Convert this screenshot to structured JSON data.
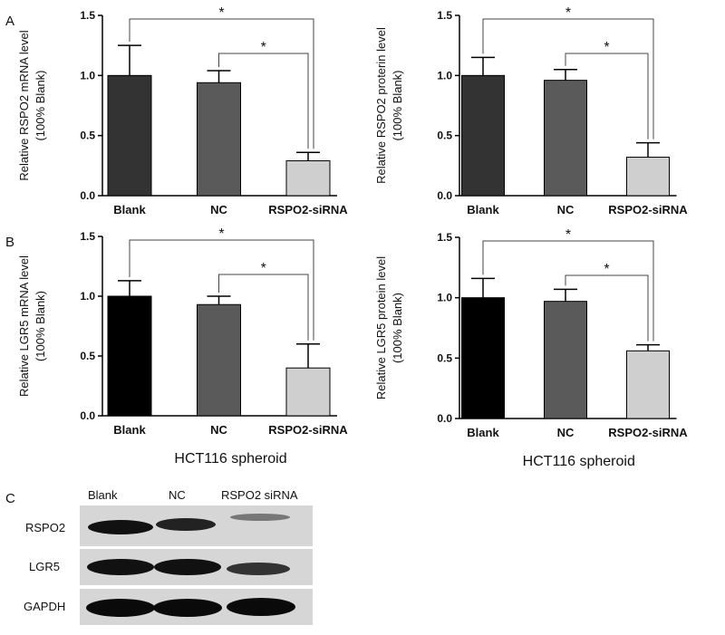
{
  "chart_data": [
    {
      "type": "bar",
      "ylabel": [
        "Relative RSPO2 mRNA level",
        "(100% Blank)"
      ],
      "categories": [
        "Blank",
        "NC",
        "RSPO2-siRNA"
      ],
      "values": [
        1.0,
        0.94,
        0.29
      ],
      "errors": [
        0.25,
        0.1,
        0.07
      ],
      "colors": [
        "#333333",
        "#5a5a5a",
        "#cfcfcf"
      ],
      "annotations": [
        "*",
        "*"
      ],
      "ylim": [
        0,
        1.5
      ],
      "yticks": [
        {
          "value": 0,
          "label": "0.0"
        },
        {
          "value": 0.5,
          "label": "0.5"
        },
        {
          "value": 1,
          "label": "1.0"
        },
        {
          "value": 1.5,
          "label": "1.5"
        }
      ]
    },
    {
      "type": "bar",
      "ylabel": [
        "Relative RSPO2 proterin level",
        "(100% Blank)"
      ],
      "categories": [
        "Blank",
        "NC",
        "RSPO2-siRNA"
      ],
      "values": [
        1.0,
        0.96,
        0.32
      ],
      "errors": [
        0.15,
        0.09,
        0.12
      ],
      "colors": [
        "#333333",
        "#5a5a5a",
        "#cfcfcf"
      ],
      "annotations": [
        "*",
        "*"
      ],
      "ylim": [
        0,
        1.5
      ],
      "yticks": [
        {
          "value": 0,
          "label": "0.0"
        },
        {
          "value": 0.5,
          "label": "0.5"
        },
        {
          "value": 1,
          "label": "1.0"
        },
        {
          "value": 1.5,
          "label": "1.5"
        }
      ]
    },
    {
      "type": "bar",
      "ylabel": [
        "Relative LGR5 mRNA level",
        "(100% Blank)"
      ],
      "xlabel": "HCT116 spheroid",
      "categories": [
        "Blank",
        "NC",
        "RSPO2-siRNA"
      ],
      "values": [
        1.0,
        0.93,
        0.4
      ],
      "errors": [
        0.13,
        0.07,
        0.2
      ],
      "colors": [
        "#000000",
        "#5a5a5a",
        "#cfcfcf"
      ],
      "annotations": [
        "*",
        "*"
      ],
      "ylim": [
        0,
        1.5
      ],
      "yticks": [
        {
          "value": 0,
          "label": "0.0"
        },
        {
          "value": 0.5,
          "label": "0.5"
        },
        {
          "value": 1,
          "label": "1.0"
        },
        {
          "value": 1.5,
          "label": "1.5"
        }
      ]
    },
    {
      "type": "bar",
      "ylabel": [
        "Relative LGR5 protein level",
        "(100% Blank)"
      ],
      "xlabel": "HCT116 spheroid",
      "categories": [
        "Blank",
        "NC",
        "RSPO2-siRNA"
      ],
      "values": [
        1.0,
        0.97,
        0.56
      ],
      "errors": [
        0.16,
        0.1,
        0.05
      ],
      "colors": [
        "#000000",
        "#5a5a5a",
        "#cfcfcf"
      ],
      "annotations": [
        "*",
        "*"
      ],
      "ylim": [
        0,
        1.5
      ],
      "yticks": [
        {
          "value": 0,
          "label": "0.0"
        },
        {
          "value": 0.5,
          "label": "0.5"
        },
        {
          "value": 1,
          "label": "1.0"
        },
        {
          "value": 1.5,
          "label": "1.5"
        }
      ]
    }
  ],
  "panels": {
    "a": "A",
    "b": "B",
    "c": "C"
  },
  "blot": {
    "lanes": [
      "Blank",
      "NC",
      "RSPO2 siRNA"
    ],
    "rows": [
      "RSPO2",
      "LGR5",
      "GAPDH"
    ]
  }
}
